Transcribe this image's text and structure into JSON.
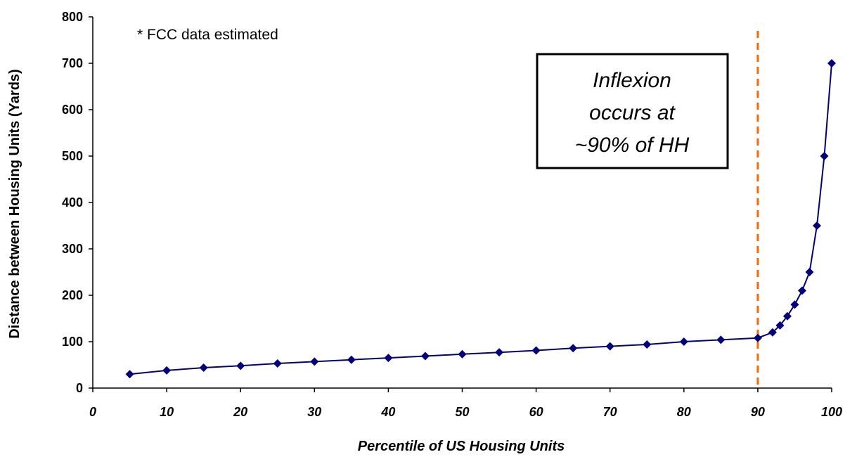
{
  "chart_data": {
    "type": "line",
    "xlabel": "Percentile of US Housing Units",
    "ylabel": "Distance between Housing Units (Yards)",
    "xlim": [
      0,
      100
    ],
    "ylim": [
      0,
      800
    ],
    "x_ticks": [
      0,
      10,
      20,
      30,
      40,
      50,
      60,
      70,
      80,
      90,
      100
    ],
    "y_ticks": [
      0,
      100,
      200,
      300,
      400,
      500,
      600,
      700,
      800
    ],
    "grid": false,
    "legend": "none",
    "series": [
      {
        "x": [
          5,
          10,
          15,
          20,
          25,
          30,
          35,
          40,
          45,
          50,
          55,
          60,
          65,
          70,
          75,
          80,
          85,
          90,
          92,
          93,
          94,
          95,
          96,
          97,
          98,
          99,
          100
        ],
        "y": [
          30,
          38,
          44,
          48,
          53,
          57,
          61,
          65,
          69,
          73,
          77,
          81,
          86,
          90,
          94,
          100,
          104,
          108,
          120,
          135,
          155,
          180,
          210,
          250,
          350,
          500,
          700
        ],
        "color": "#000080",
        "marker": "diamond"
      }
    ],
    "reference_line": {
      "x": 90,
      "color": "#ff6600",
      "style": "dashed"
    },
    "annotations": {
      "footnote": "* FCC data estimated",
      "callout_lines": [
        "Inflexion",
        "occurs at",
        "~90% of HH"
      ]
    }
  }
}
